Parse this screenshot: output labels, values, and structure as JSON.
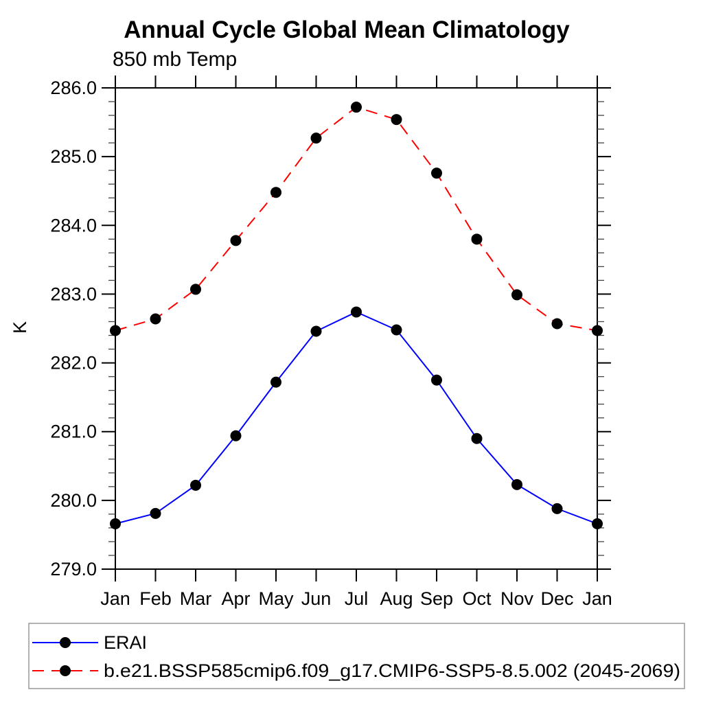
{
  "chart_data": {
    "type": "line",
    "title": "Annual Cycle Global Mean Climatology",
    "subtitle": "850 mb Temp",
    "xlabel": "",
    "ylabel": "K",
    "categories": [
      "Jan",
      "Feb",
      "Mar",
      "Apr",
      "May",
      "Jun",
      "Jul",
      "Aug",
      "Sep",
      "Oct",
      "Nov",
      "Dec",
      "Jan"
    ],
    "ylim": [
      279.0,
      286.0
    ],
    "y_major_step": 1.0,
    "y_minor_step": 0.2,
    "y_tick_labels": [
      "279.0",
      "280.0",
      "281.0",
      "282.0",
      "283.0",
      "284.0",
      "285.0",
      "286.0"
    ],
    "grid": false,
    "legend_position": "bottom-left",
    "series": [
      {
        "name": "ERAI",
        "color": "#0000ff",
        "line_style": "solid",
        "marker": "circle",
        "marker_color": "#000000",
        "values": [
          279.66,
          279.81,
          280.22,
          280.94,
          281.72,
          282.46,
          282.74,
          282.48,
          281.75,
          280.9,
          280.23,
          279.88,
          279.66
        ]
      },
      {
        "name": "b.e21.BSSP585cmip6.f09_g17.CMIP6-SSP5-8.5.002 (2045-2069)",
        "color": "#ff0000",
        "line_style": "dashed",
        "marker": "circle",
        "marker_color": "#000000",
        "values": [
          282.47,
          282.64,
          283.07,
          283.78,
          284.48,
          285.27,
          285.72,
          285.54,
          284.76,
          283.8,
          282.99,
          282.57,
          282.47
        ]
      }
    ]
  },
  "colors": {
    "axis": "#000000",
    "minor_tick": "#444444",
    "text": "#000000",
    "legend_border": "#999999",
    "background": "#ffffff"
  }
}
